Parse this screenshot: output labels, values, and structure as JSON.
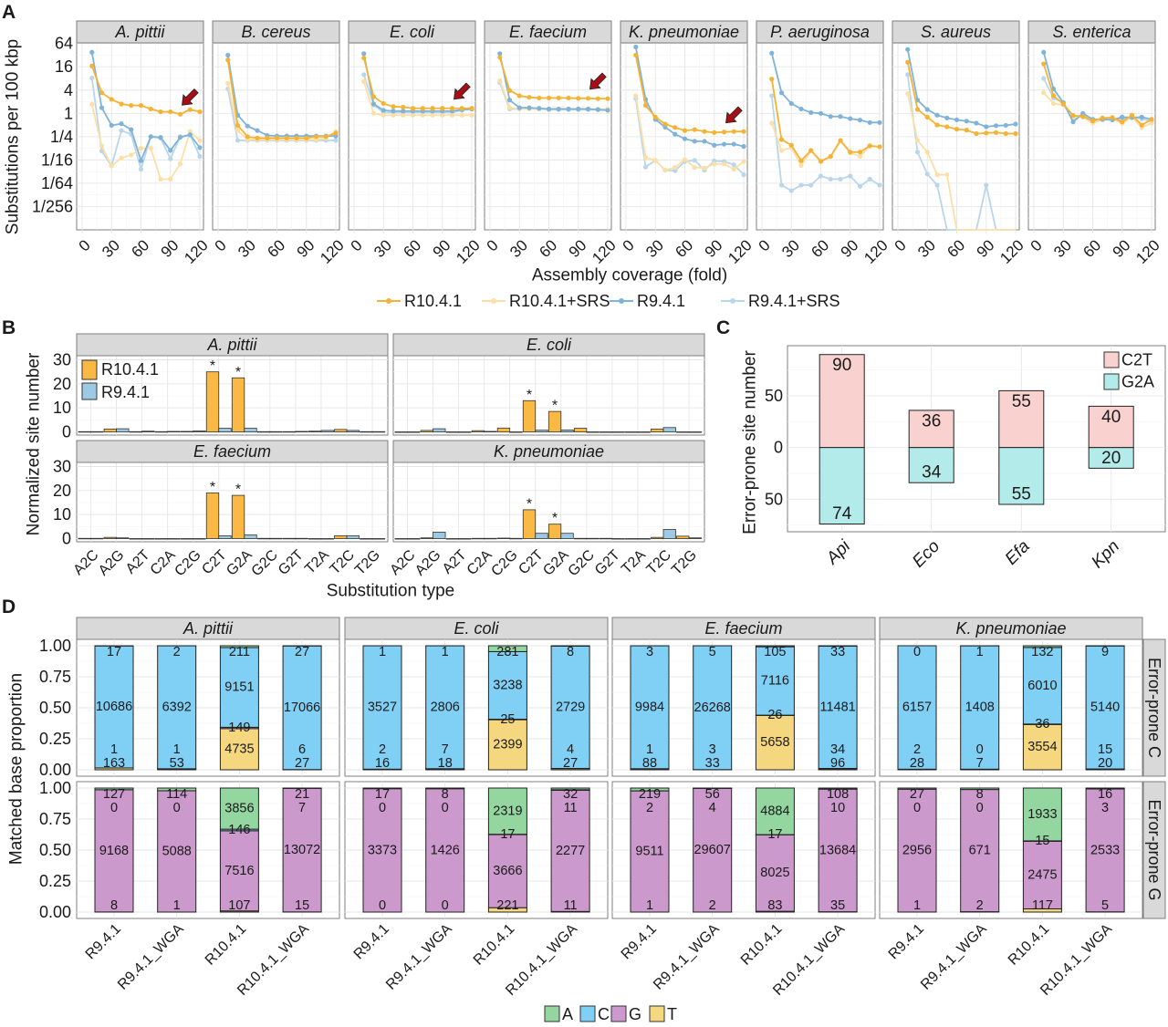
{
  "panel_letters": [
    "A",
    "B",
    "C",
    "D"
  ],
  "chart_data": [
    {
      "type": "line",
      "ylabel": "Substitutions per 100 kbp",
      "xlabel": "Assembly coverage (fold)",
      "y_scale": "log2",
      "y_ticks": [
        {
          "value": 64,
          "label": "64"
        },
        {
          "value": 16,
          "label": "16"
        },
        {
          "value": 4,
          "label": "4"
        },
        {
          "value": 1,
          "label": "1"
        },
        {
          "value": 0.25,
          "label": "1/4"
        },
        {
          "value": 0.0625,
          "label": "1/16"
        },
        {
          "value": 0.015625,
          "label": "1/64"
        },
        {
          "value": 0.00390625,
          "label": "1/256"
        }
      ],
      "x_ticks": [
        "0",
        "30",
        "60",
        "90",
        "120"
      ],
      "x": [
        10,
        20,
        30,
        40,
        50,
        60,
        70,
        80,
        90,
        100,
        110,
        120
      ],
      "grid": true,
      "legend_position": "bottom",
      "series": [
        {
          "name": "R10.4.1",
          "color": "#F5B335"
        },
        {
          "name": "R10.4.1+SRS",
          "color": "#FCDFA6"
        },
        {
          "name": "R9.4.1",
          "color": "#7FB3D9"
        },
        {
          "name": "R9.4.1+SRS",
          "color": "#B9D6EB"
        }
      ],
      "arrow_coverage": 100,
      "facets": [
        {
          "name": "A. pittii",
          "arrow": true,
          "values": [
            [
              16.8,
              3.4,
              2.3,
              1.75,
              1.6,
              1.6,
              1.3,
              1.1,
              1.1,
              0.95,
              1.25,
              1.1
            ],
            [
              1.7,
              0.145,
              0.044,
              0.07,
              0.084,
              0.125,
              0.125,
              0.02,
              0.02,
              0.05,
              0.34,
              0.2
            ],
            [
              38,
              1.4,
              0.49,
              0.54,
              0.38,
              0.06,
              0.25,
              0.24,
              0.11,
              0.24,
              0.28,
              0.13
            ],
            [
              8.2,
              0.106,
              0.044,
              0.36,
              0.29,
              0.036,
              0.25,
              0.23,
              0.067,
              0.25,
              0.28,
              0.077
            ]
          ]
        },
        {
          "name": "B. cereus",
          "arrow": false,
          "values": [
            [
              24,
              0.49,
              0.25,
              0.23,
              0.23,
              0.23,
              0.23,
              0.23,
              0.23,
              0.25,
              0.25,
              0.31
            ],
            [
              6,
              0.36,
              0.21,
              0.21,
              0.21,
              0.21,
              0.21,
              0.21,
              0.21,
              0.21,
              0.23,
              0.34
            ],
            [
              32,
              0.9,
              0.47,
              0.36,
              0.27,
              0.26,
              0.26,
              0.26,
              0.26,
              0.26,
              0.26,
              0.26
            ],
            [
              4.3,
              0.2,
              0.2,
              0.2,
              0.2,
              0.2,
              0.2,
              0.2,
              0.2,
              0.2,
              0.2,
              0.2
            ]
          ]
        },
        {
          "name": "E. coli",
          "arrow": true,
          "values": [
            [
              27,
              2.7,
              1.8,
              1.5,
              1.45,
              1.35,
              1.35,
              1.35,
              1.35,
              1.35,
              1.35,
              1.35
            ],
            [
              6.7,
              1.0,
              0.9,
              0.9,
              0.9,
              0.9,
              0.9,
              0.9,
              0.9,
              0.9,
              0.9,
              0.9
            ],
            [
              35,
              1.75,
              1.2,
              1.15,
              1.15,
              1.15,
              1.15,
              1.15,
              1.15,
              1.15,
              1.25,
              1.3
            ],
            [
              10,
              1.65,
              1.05,
              1.05,
              1.05,
              1.05,
              1.05,
              1.05,
              1.05,
              1.05,
              1.2,
              1.3
            ]
          ]
        },
        {
          "name": "E. faecium",
          "arrow": true,
          "values": [
            [
              28,
              3.9,
              2.85,
              2.6,
              2.5,
              2.5,
              2.5,
              2.5,
              2.45,
              2.45,
              2.4,
              2.4
            ],
            [
              7,
              1.4,
              1.3,
              1.3,
              1.3,
              1.3,
              1.3,
              1.3,
              1.3,
              1.3,
              1.3,
              1.3
            ],
            [
              35,
              2.2,
              1.4,
              1.4,
              1.35,
              1.3,
              1.3,
              1.3,
              1.3,
              1.3,
              1.25,
              1.2
            ],
            [
              6.2,
              1.3,
              1.3,
              1.3,
              1.3,
              1.25,
              1.25,
              1.25,
              1.25,
              1.25,
              1.25,
              1.25
            ]
          ]
        },
        {
          "name": "K. pneumoniae",
          "arrow": true,
          "values": [
            [
              32,
              1.6,
              0.8,
              0.53,
              0.43,
              0.36,
              0.38,
              0.34,
              0.32,
              0.33,
              0.34,
              0.34
            ],
            [
              2.85,
              0.072,
              0.061,
              0.034,
              0.04,
              0.064,
              0.04,
              0.039,
              0.049,
              0.049,
              0.036,
              0.057
            ],
            [
              52,
              2.3,
              0.7,
              0.44,
              0.29,
              0.22,
              0.19,
              0.19,
              0.15,
              0.16,
              0.16,
              0.14
            ],
            [
              2.4,
              0.041,
              0.061,
              0.034,
              0.033,
              0.057,
              0.061,
              0.034,
              0.059,
              0.057,
              0.047,
              0.026
            ]
          ]
        },
        {
          "name": "P. aeruginosa",
          "arrow": false,
          "values": [
            [
              7.7,
              0.21,
              0.15,
              0.06,
              0.11,
              0.057,
              0.077,
              0.2,
              0.1,
              0.1,
              0.145,
              0.137
            ],
            [
              0.56,
              0.11,
              0.13,
              0.045,
              0.11,
              0.06,
              0.077,
              0.19,
              0.095,
              0.077,
              0.145,
              0.137
            ],
            [
              36,
              3.4,
              1.8,
              1.3,
              1.05,
              1.0,
              0.83,
              0.83,
              0.73,
              0.67,
              0.58,
              0.58
            ],
            [
              2.85,
              0.014,
              0.01,
              0.014,
              0.014,
              0.024,
              0.02,
              0.02,
              0.024,
              0.013,
              0.02,
              0.014
            ]
          ]
        },
        {
          "name": "S. aureus",
          "arrow": false,
          "values": [
            [
              21,
              1.26,
              0.8,
              0.5,
              0.45,
              0.39,
              0.37,
              0.3,
              0.31,
              0.32,
              0.3,
              0.3
            ],
            [
              3.25,
              0.2,
              0.1,
              0.026,
              0.026,
              0,
              0,
              0,
              0,
              0,
              0,
              0
            ],
            [
              45,
              2.2,
              1.26,
              0.9,
              0.76,
              0.68,
              0.63,
              0.56,
              0.45,
              0.48,
              0.49,
              0.53
            ],
            [
              10,
              0.1,
              0.027,
              0.014,
              0,
              0,
              0,
              0,
              0.014,
              0,
              0,
              0
            ]
          ]
        },
        {
          "name": "S. enterica",
          "arrow": false,
          "values": [
            [
              19,
              2.85,
              1.75,
              0.88,
              0.83,
              0.64,
              0.76,
              0.78,
              0.6,
              0.9,
              0.5,
              0.7
            ],
            [
              3.4,
              1.8,
              1.65,
              0.8,
              0.8,
              0.56,
              0.68,
              0.7,
              0.56,
              0.8,
              0.43,
              0.56
            ],
            [
              38,
              4.3,
              1.9,
              0.6,
              1.0,
              0.7,
              0.7,
              0.68,
              0.8,
              0.78,
              0.8,
              0.7
            ],
            [
              8,
              2.5,
              1.9,
              0.72,
              0.9,
              0.62,
              0.7,
              0.68,
              0.72,
              0.82,
              0.72,
              0.62
            ]
          ]
        }
      ]
    },
    {
      "type": "bar",
      "ylabel": "Normalized site number",
      "xlabel": "Substitution type",
      "ylim": [
        0,
        30
      ],
      "y_ticks": [
        "0",
        "10",
        "20",
        "30"
      ],
      "categories": [
        "A2C",
        "A2G",
        "A2T",
        "C2A",
        "C2G",
        "C2T",
        "G2A",
        "G2C",
        "G2T",
        "T2A",
        "T2C",
        "T2G"
      ],
      "legend_position": "top-left",
      "significance_mark": "*",
      "series": [
        {
          "name": "R10.4.1",
          "color": "#F9B944"
        },
        {
          "name": "R9.4.1",
          "color": "#9CC9E3"
        }
      ],
      "facets": [
        {
          "name": "A. pittii",
          "significant": [
            "C2T",
            "G2A"
          ],
          "values": [
            [
              0.1,
              1.2,
              0.1,
              0.1,
              0.2,
              25,
              22.5,
              0.1,
              0.1,
              0.3,
              1.0,
              0.1
            ],
            [
              0.1,
              1.3,
              0.3,
              0.2,
              0.4,
              1.5,
              1.5,
              0.1,
              0.2,
              0.6,
              0.6,
              0.1
            ]
          ]
        },
        {
          "name": "E. coli",
          "significant": [
            "C2T",
            "G2A"
          ],
          "values": [
            [
              0,
              0.6,
              0,
              0.5,
              1.6,
              13,
              8.5,
              1.5,
              0,
              0,
              1.2,
              0
            ],
            [
              0,
              1.3,
              0,
              0.2,
              0,
              0.7,
              0.8,
              0,
              0,
              0,
              1.8,
              0
            ]
          ]
        },
        {
          "name": "E. faecium",
          "significant": [
            "C2T",
            "G2A"
          ],
          "values": [
            [
              0.1,
              0.5,
              0,
              0,
              0,
              19,
              18,
              0.1,
              0.1,
              0,
              1.2,
              0
            ],
            [
              0.1,
              0.3,
              0,
              0,
              0,
              1.2,
              1.5,
              0.1,
              0.1,
              0,
              1.2,
              0
            ]
          ]
        },
        {
          "name": "K. pneumoniae",
          "significant": [
            "C2T",
            "G2A"
          ],
          "values": [
            [
              0,
              0.3,
              0,
              0.1,
              0.2,
              12,
              6,
              0.1,
              0.1,
              0,
              0.5,
              1.0
            ],
            [
              0,
              2.7,
              0,
              0.1,
              0.1,
              2.2,
              2.2,
              0.1,
              0,
              0,
              3.8,
              0.3
            ]
          ]
        }
      ]
    },
    {
      "type": "bar",
      "ylabel": "Error-prone site number",
      "y_ticks": [
        {
          "value": 50,
          "label": "50"
        },
        {
          "value": 0,
          "label": "0"
        },
        {
          "value": -50,
          "label": "50"
        }
      ],
      "categories": [
        "Api",
        "Eco",
        "Efa",
        "Kpn"
      ],
      "legend_position": "top-right",
      "series": [
        {
          "name": "C2T",
          "color": "#F9D1CF",
          "direction": "up",
          "values": [
            90,
            36,
            55,
            40
          ]
        },
        {
          "name": "G2A",
          "color": "#B3EAEA",
          "direction": "down",
          "values": [
            74,
            34,
            55,
            20
          ]
        }
      ]
    },
    {
      "type": "bar",
      "stacked": true,
      "ylabel": "Matched base proportion",
      "ylim": [
        0,
        1
      ],
      "y_ticks": [
        "0.00",
        "0.25",
        "0.50",
        "0.75",
        "1.00"
      ],
      "categories": [
        "R9.4.1",
        "R9.4.1_WGA",
        "R10.4.1",
        "R10.4.1_WGA"
      ],
      "bases": [
        "A",
        "C",
        "G",
        "T"
      ],
      "base_colors": [
        "#93D6A0",
        "#80D0F5",
        "#CC99CC",
        "#F5D77F"
      ],
      "rows": [
        "Error-prone C",
        "Error-prone G"
      ],
      "legend_position": "bottom",
      "facets": [
        {
          "name": "A. pittii",
          "counts": [
            [
              [
                17,
                10686,
                1,
                163
              ],
              [
                2,
                6392,
                1,
                53
              ],
              [
                211,
                9151,
                149,
                4735
              ],
              [
                27,
                17066,
                6,
                27
              ]
            ],
            [
              [
                127,
                0,
                9168,
                8
              ],
              [
                114,
                0,
                5088,
                1
              ],
              [
                3856,
                146,
                7516,
                107
              ],
              [
                21,
                7,
                13072,
                15
              ]
            ]
          ]
        },
        {
          "name": "E. coli",
          "counts": [
            [
              [
                1,
                3527,
                2,
                16
              ],
              [
                1,
                2806,
                7,
                18
              ],
              [
                281,
                3238,
                25,
                2399
              ],
              [
                8,
                2729,
                4,
                27
              ]
            ],
            [
              [
                17,
                0,
                3373,
                0
              ],
              [
                8,
                0,
                1426,
                0
              ],
              [
                2319,
                17,
                3666,
                221
              ],
              [
                32,
                11,
                2277,
                11
              ]
            ]
          ]
        },
        {
          "name": "E. faecium",
          "counts": [
            [
              [
                3,
                9984,
                1,
                88
              ],
              [
                5,
                26268,
                3,
                33
              ],
              [
                105,
                7116,
                26,
                5658
              ],
              [
                33,
                11481,
                34,
                96
              ]
            ],
            [
              [
                219,
                2,
                9511,
                1
              ],
              [
                56,
                4,
                29607,
                2
              ],
              [
                4884,
                17,
                8025,
                83
              ],
              [
                108,
                10,
                13684,
                35
              ]
            ]
          ]
        },
        {
          "name": "K. pneumoniae",
          "counts": [
            [
              [
                0,
                6157,
                2,
                28
              ],
              [
                1,
                1408,
                0,
                7
              ],
              [
                132,
                6010,
                36,
                3554
              ],
              [
                9,
                5140,
                15,
                20
              ]
            ],
            [
              [
                27,
                0,
                2956,
                1
              ],
              [
                8,
                0,
                671,
                2
              ],
              [
                1933,
                15,
                2475,
                117
              ],
              [
                16,
                3,
                2533,
                5
              ]
            ]
          ]
        }
      ]
    }
  ]
}
